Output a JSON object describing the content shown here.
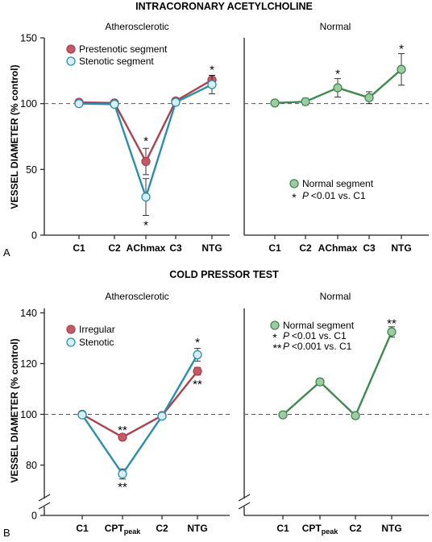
{
  "colors": {
    "red": "#a8434f",
    "red_fill": "#c25a67",
    "teal": "#2a8fa8",
    "teal_fill": "#d6eef4",
    "green": "#3f8a4f",
    "green_fill": "#9fcba3",
    "axis": "#231f20",
    "dashed": "#555555"
  },
  "panel_a": {
    "letter": "A",
    "title": "INTRACORONARY ACETYLCHOLINE",
    "ylabel": "VESSEL DIAMETER (% control)"
  },
  "panel_b": {
    "letter": "B",
    "title": "COLD PRESSOR TEST",
    "ylabel": "VESSEL DIAMETER (% control)"
  },
  "chart_data": [
    {
      "type": "line",
      "panel": "A",
      "subtitle": "Atherosclerotic",
      "categories": [
        "C1",
        "C2",
        "AChmax",
        "C3",
        "NTG"
      ],
      "yticks": [
        0,
        50,
        100,
        150
      ],
      "ylim": [
        0,
        150
      ],
      "reference_line": 100,
      "legend_position": "top-left",
      "series": [
        {
          "name": "Prestenotic segment",
          "color_key": "red",
          "values": [
            101,
            100.5,
            56,
            102,
            118
          ],
          "errors": [
            1,
            1.5,
            10,
            1.5,
            3.5
          ]
        },
        {
          "name": "Stenotic segment",
          "color_key": "teal",
          "values": [
            100,
            99.5,
            29,
            101,
            114.5
          ],
          "errors": [
            1,
            1.5,
            14,
            1.5,
            7
          ]
        }
      ],
      "annotations": [
        {
          "text": "*",
          "x": "AChmax",
          "y": 73
        },
        {
          "text": "*",
          "x": "AChmax",
          "y": 9
        },
        {
          "text": "*",
          "x": "NTG",
          "y": 127
        }
      ]
    },
    {
      "type": "line",
      "panel": "A",
      "subtitle": "Normal",
      "categories": [
        "C1",
        "C2",
        "AChmax",
        "C3",
        "NTG"
      ],
      "ylim": [
        0,
        150
      ],
      "reference_line": 100,
      "legend_position": "center-right",
      "legend_entries": [
        "Normal segment",
        "* P <0.01 vs. C1"
      ],
      "series": [
        {
          "name": "Normal segment",
          "color_key": "green",
          "values": [
            100.5,
            101.5,
            112,
            104.5,
            126
          ],
          "errors": [
            1,
            2.5,
            7,
            4.5,
            12
          ]
        }
      ],
      "annotations": [
        {
          "text": "*",
          "x": "AChmax",
          "y": 124
        },
        {
          "text": "*",
          "x": "NTG",
          "y": 143
        }
      ]
    },
    {
      "type": "line",
      "panel": "B",
      "subtitle": "Atherosclerotic",
      "categories": [
        "C1",
        "CPTpeak",
        "C2",
        "NTG"
      ],
      "yticks": [
        0,
        80,
        100,
        120,
        140
      ],
      "ylim": [
        70,
        145
      ],
      "axis_break": true,
      "reference_line": 100,
      "legend_position": "top-left",
      "series": [
        {
          "name": "Irregular",
          "color_key": "red",
          "values": [
            100,
            91,
            99.5,
            117
          ],
          "errors": [
            0.5,
            1,
            1,
            1.5
          ]
        },
        {
          "name": "Stenotic",
          "color_key": "teal",
          "values": [
            99.8,
            76.5,
            99.3,
            123.5
          ],
          "errors": [
            0.5,
            2,
            1,
            2.5
          ]
        }
      ],
      "annotations": [
        {
          "text": "**",
          "x": "CPTpeak",
          "y": 94.5
        },
        {
          "text": "**",
          "x": "CPTpeak",
          "y": 72
        },
        {
          "text": "*",
          "x": "NTG",
          "y": 129
        },
        {
          "text": "**",
          "x": "NTG",
          "y": 112.5
        }
      ]
    },
    {
      "type": "line",
      "panel": "B",
      "subtitle": "Normal",
      "categories": [
        "C1",
        "CPTpeak",
        "C2",
        "NTG"
      ],
      "ylim": [
        70,
        145
      ],
      "axis_break": true,
      "reference_line": 100,
      "legend_position": "top-left",
      "legend_entries": [
        "Normal segment",
        "* P <0.01 vs. C1",
        "** P <0.001 vs. C1"
      ],
      "series": [
        {
          "name": "Normal segment",
          "color_key": "green",
          "values": [
            99.8,
            112.8,
            99.5,
            132.5
          ],
          "errors": [
            0.5,
            1.2,
            1.2,
            2
          ]
        }
      ],
      "annotations": [
        {
          "text": "**",
          "x": "NTG",
          "y": 136.5
        }
      ]
    }
  ]
}
